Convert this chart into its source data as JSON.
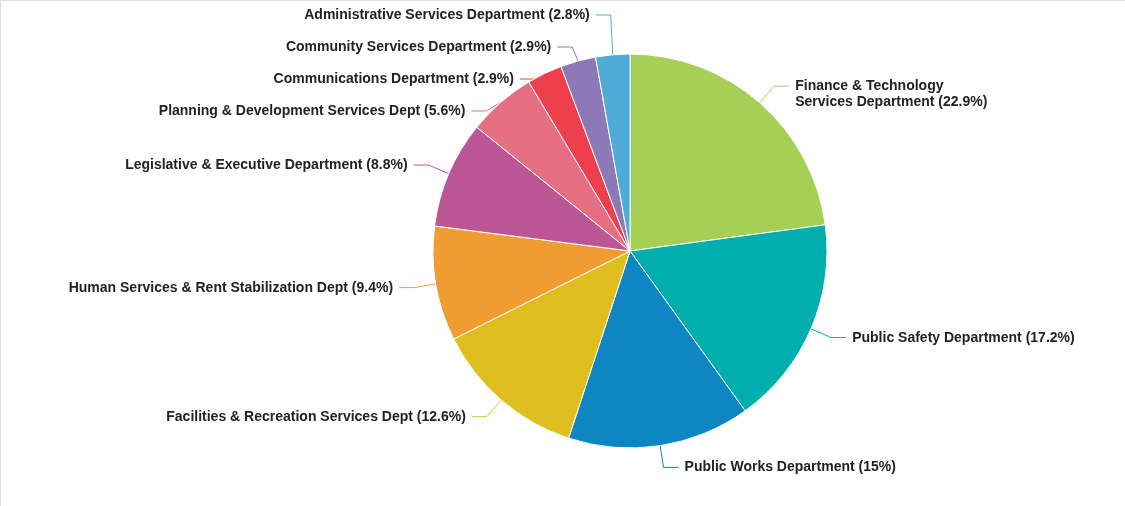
{
  "chart_data": {
    "type": "pie",
    "categories": [
      "Finance & Technology Services Department",
      "Public Safety Department",
      "Public Works Department",
      "Facilities & Recreation Services Dept",
      "Human Services & Rent Stabilization Dept",
      "Legislative & Executive Department",
      "Planning & Development Services Dept",
      "Communications Department",
      "Community Services Department",
      "Administrative Services Department"
    ],
    "values": [
      22.9,
      17.2,
      15,
      12.6,
      9.4,
      8.8,
      5.6,
      2.9,
      2.9,
      2.8
    ],
    "value_labels": [
      "(22.9%)",
      "(17.2%)",
      "(15%)",
      "(12.6%)",
      "(9.4%)",
      "(8.8%)",
      "(5.6%)",
      "(2.9%)",
      "(2.9%)",
      "(2.8%)"
    ],
    "colors": [
      "#a5d055",
      "#00aeae",
      "#0e86c4",
      "#dfbe20",
      "#f09c32",
      "#bc5695",
      "#e66f82",
      "#ee3f4f",
      "#8d79b7",
      "#4fabd7"
    ]
  }
}
